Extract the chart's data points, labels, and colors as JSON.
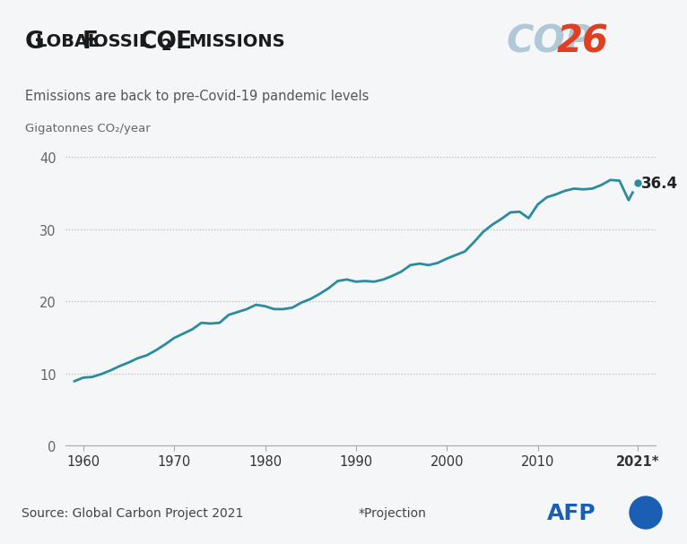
{
  "title_part1": "Global fossil CO",
  "title_sub": "2",
  "title_part2": " emissions",
  "subtitle": "Emissions are back to pre-Covid-19 pandemic levels",
  "ylabel": "Gigatonnes CO₂/year",
  "source_text": "Source: Global Carbon Project 2021",
  "projection_text": "*Projection",
  "final_label": "36.4",
  "bg_header": "#d5dae3",
  "bg_main": "#f5f6f8",
  "bg_footer": "#cdd3de",
  "line_color": "#2a8c9e",
  "title_color": "#1a1a1a",
  "cop_color": "#b0c8d8",
  "num26_color": "#e04020",
  "afp_color": "#1a5fb4",
  "years": [
    1959,
    1960,
    1961,
    1962,
    1963,
    1964,
    1965,
    1966,
    1967,
    1968,
    1969,
    1970,
    1971,
    1972,
    1973,
    1974,
    1975,
    1976,
    1977,
    1978,
    1979,
    1980,
    1981,
    1982,
    1983,
    1984,
    1985,
    1986,
    1987,
    1988,
    1989,
    1990,
    1991,
    1992,
    1993,
    1994,
    1995,
    1996,
    1997,
    1998,
    1999,
    2000,
    2001,
    2002,
    2003,
    2004,
    2005,
    2006,
    2007,
    2008,
    2009,
    2010,
    2011,
    2012,
    2013,
    2014,
    2015,
    2016,
    2017,
    2018,
    2019,
    2020,
    2021
  ],
  "values": [
    8.9,
    9.4,
    9.5,
    9.9,
    10.4,
    11.0,
    11.5,
    12.1,
    12.5,
    13.2,
    14.0,
    14.9,
    15.5,
    16.1,
    17.0,
    16.9,
    17.0,
    18.1,
    18.5,
    18.9,
    19.5,
    19.3,
    18.9,
    18.9,
    19.1,
    19.8,
    20.3,
    21.0,
    21.8,
    22.8,
    23.0,
    22.7,
    22.8,
    22.7,
    23.0,
    23.5,
    24.1,
    25.0,
    25.2,
    25.0,
    25.3,
    25.9,
    26.4,
    26.9,
    28.2,
    29.6,
    30.6,
    31.4,
    32.3,
    32.4,
    31.5,
    33.4,
    34.4,
    34.8,
    35.3,
    35.6,
    35.5,
    35.6,
    36.1,
    36.8,
    36.7,
    34.0,
    36.4
  ],
  "xlim": [
    1958,
    2023
  ],
  "ylim": [
    0,
    42
  ],
  "yticks": [
    0,
    10,
    20,
    30,
    40
  ],
  "xticks": [
    1960,
    1970,
    1980,
    1990,
    2000,
    2010,
    2021
  ],
  "xtick_labels": [
    "1960",
    "1970",
    "1980",
    "1990",
    "2000",
    "2010",
    "2021*"
  ]
}
